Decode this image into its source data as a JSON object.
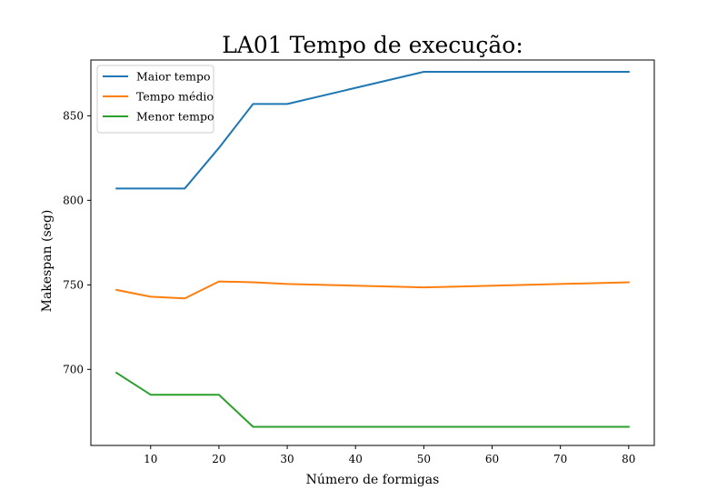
{
  "chart_data": {
    "type": "line",
    "title": "LA01 Tempo de execução:",
    "xlabel": "Número de formigas",
    "ylabel": "Makespan (seg)",
    "xlim": [
      1.25,
      83.75
    ],
    "ylim": [
      655,
      883
    ],
    "xticks": [
      10,
      20,
      30,
      40,
      50,
      60,
      70,
      80
    ],
    "yticks": [
      700,
      750,
      800,
      850
    ],
    "grid": false,
    "legend_position": "top-left",
    "series": [
      {
        "name": "Maior tempo",
        "color": "#1f77b4",
        "x": [
          5,
          10,
          15,
          20,
          25,
          30,
          50,
          80
        ],
        "y": [
          807,
          807,
          807,
          831,
          857,
          857,
          876,
          876
        ]
      },
      {
        "name": "Tempo médio",
        "color": "#ff7f0e",
        "x": [
          5,
          10,
          15,
          20,
          25,
          30,
          50,
          80
        ],
        "y": [
          747,
          743,
          742,
          752,
          751.5,
          750.5,
          748.5,
          751.5
        ]
      },
      {
        "name": "Menor tempo",
        "color": "#2ca02c",
        "x": [
          5,
          10,
          15,
          20,
          25,
          30,
          50,
          80
        ],
        "y": [
          698,
          685,
          685,
          685,
          666,
          666,
          666,
          666
        ]
      }
    ]
  }
}
